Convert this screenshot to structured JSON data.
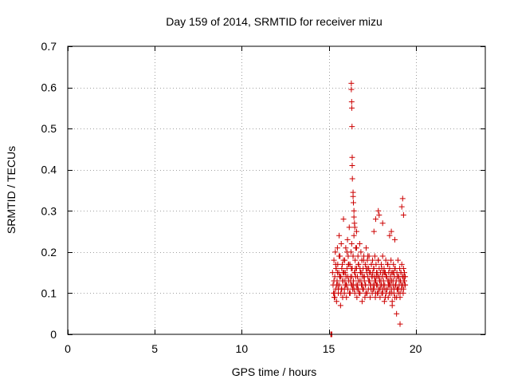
{
  "chart_data": {
    "type": "scatter",
    "title": "Day 159 of 2014, SRMTID for receiver mizu",
    "xlabel": "GPS time / hours",
    "ylabel": "SRMTID / TECUs",
    "xlim": [
      0,
      24
    ],
    "ylim": [
      0,
      0.7
    ],
    "xticks": [
      0,
      5,
      10,
      15,
      20
    ],
    "yticks": [
      0,
      0.1,
      0.2,
      0.3,
      0.4,
      0.5,
      0.6,
      0.7
    ],
    "xtick_labels": [
      "0",
      "5",
      "10",
      "15",
      "20"
    ],
    "ytick_labels": [
      "0",
      "0.1",
      "0.2",
      "0.3",
      "0.4",
      "0.5",
      "0.6",
      "0.7"
    ],
    "grid": true,
    "marker": "+",
    "color": "#cc0000",
    "series": [
      {
        "name": "SRMTID",
        "x": [
          15.22,
          15.25,
          15.28,
          15.3,
          15.32,
          15.35,
          15.38,
          15.4,
          15.42,
          15.45,
          15.48,
          15.5,
          15.52,
          15.55,
          15.58,
          15.6,
          15.62,
          15.65,
          15.68,
          15.7,
          15.72,
          15.75,
          15.78,
          15.8,
          15.82,
          15.85,
          15.88,
          15.9,
          15.92,
          15.95,
          15.98,
          16.0,
          16.02,
          16.05,
          16.08,
          16.1,
          16.12,
          16.15,
          16.18,
          16.2,
          16.22,
          16.25,
          16.28,
          16.3,
          16.32,
          16.35,
          16.38,
          16.4,
          16.42,
          16.45,
          16.48,
          16.5,
          16.52,
          16.55,
          16.58,
          16.6,
          16.62,
          16.65,
          16.68,
          16.7,
          16.72,
          16.75,
          16.78,
          16.8,
          16.82,
          16.85,
          16.88,
          16.9,
          16.92,
          16.95,
          16.98,
          17.0,
          17.02,
          17.05,
          17.08,
          17.1,
          17.12,
          17.15,
          17.18,
          17.2,
          17.22,
          17.25,
          17.28,
          17.3,
          17.32,
          17.35,
          17.38,
          17.4,
          17.42,
          17.45,
          17.48,
          17.5,
          17.52,
          17.55,
          17.58,
          17.6,
          17.62,
          17.65,
          17.68,
          17.7,
          17.72,
          17.75,
          17.78,
          17.8,
          17.82,
          17.85,
          17.88,
          17.9,
          17.92,
          17.95,
          17.98,
          18.0,
          18.02,
          18.05,
          18.08,
          18.1,
          18.12,
          18.15,
          18.18,
          18.2,
          18.22,
          18.25,
          18.28,
          18.3,
          18.32,
          18.35,
          18.38,
          18.4,
          18.42,
          18.45,
          18.48,
          18.5,
          18.52,
          18.55,
          18.58,
          18.6,
          18.62,
          18.65,
          18.68,
          18.7,
          18.72,
          18.75,
          18.78,
          18.8,
          18.82,
          18.85,
          18.88,
          18.9,
          18.92,
          18.95,
          18.98,
          19.0,
          19.02,
          19.05,
          19.08,
          19.1,
          19.12,
          19.15,
          19.18,
          19.2,
          19.22,
          19.25,
          19.28,
          19.3,
          19.32,
          19.35,
          19.38,
          19.4,
          15.3,
          15.35,
          15.4,
          15.45,
          15.5,
          15.55,
          15.6,
          15.65,
          15.7,
          15.75,
          15.8,
          15.85,
          15.9,
          15.95,
          16.0,
          16.05,
          16.1,
          16.15,
          16.2,
          16.25,
          16.3,
          16.35,
          16.4,
          16.45,
          16.5,
          16.55,
          16.6,
          16.65,
          16.7,
          16.75,
          16.8,
          16.85,
          16.9,
          16.95,
          17.0,
          17.05,
          17.1,
          17.15,
          17.2,
          17.25,
          17.3,
          17.35,
          17.4,
          17.45,
          17.5,
          17.55,
          17.6,
          17.65,
          17.7,
          17.75,
          17.8,
          17.85,
          17.9,
          17.95,
          18.0,
          18.05,
          18.1,
          18.15,
          18.2,
          18.25,
          18.3,
          18.35,
          18.4,
          18.45,
          18.5,
          18.55,
          18.6,
          18.65,
          18.7,
          18.75,
          18.8,
          18.85,
          18.9,
          18.95,
          19.0,
          19.05,
          19.1,
          19.15,
          19.2,
          19.25,
          19.3,
          19.35,
          19.4,
          15.33,
          15.43,
          15.53,
          15.63,
          15.73,
          15.83,
          15.93,
          16.03,
          16.13,
          16.23,
          16.33,
          16.43,
          16.53,
          16.63,
          16.73,
          16.83,
          16.93,
          17.03,
          17.13,
          17.23,
          17.33,
          17.43,
          17.53,
          17.63,
          17.73,
          17.83,
          17.93,
          18.03,
          18.13,
          18.23,
          18.33,
          18.43,
          18.53,
          18.63,
          18.73,
          18.83,
          18.93,
          19.03,
          19.13,
          19.23,
          19.33,
          16.3,
          16.3,
          16.32,
          16.33,
          16.34,
          16.35,
          16.35,
          16.36,
          16.4,
          16.4,
          16.42,
          16.45,
          16.45,
          16.48,
          16.5,
          16.6,
          17.6,
          17.7,
          17.85,
          17.9,
          18.1,
          18.5,
          18.6,
          18.8,
          19.2,
          19.25,
          19.3,
          19.1,
          15.12,
          15.15,
          15.18
        ],
        "y": [
          0.15,
          0.12,
          0.1,
          0.18,
          0.09,
          0.14,
          0.2,
          0.11,
          0.16,
          0.08,
          0.13,
          0.21,
          0.17,
          0.1,
          0.15,
          0.24,
          0.12,
          0.19,
          0.07,
          0.14,
          0.22,
          0.11,
          0.17,
          0.09,
          0.13,
          0.28,
          0.15,
          0.1,
          0.18,
          0.12,
          0.21,
          0.14,
          0.09,
          0.16,
          0.23,
          0.11,
          0.19,
          0.13,
          0.26,
          0.1,
          0.17,
          0.14,
          0.2,
          0.12,
          0.22,
          0.16,
          0.11,
          0.19,
          0.13,
          0.24,
          0.15,
          0.1,
          0.18,
          0.21,
          0.12,
          0.16,
          0.09,
          0.14,
          0.19,
          0.11,
          0.17,
          0.13,
          0.22,
          0.1,
          0.15,
          0.2,
          0.12,
          0.18,
          0.08,
          0.14,
          0.16,
          0.11,
          0.19,
          0.13,
          0.09,
          0.17,
          0.12,
          0.21,
          0.15,
          0.1,
          0.18,
          0.14,
          0.11,
          0.16,
          0.19,
          0.13,
          0.09,
          0.15,
          0.12,
          0.17,
          0.14,
          0.1,
          0.18,
          0.12,
          0.16,
          0.11,
          0.14,
          0.19,
          0.09,
          0.13,
          0.17,
          0.12,
          0.15,
          0.1,
          0.14,
          0.18,
          0.11,
          0.16,
          0.13,
          0.09,
          0.15,
          0.12,
          0.17,
          0.1,
          0.14,
          0.19,
          0.11,
          0.13,
          0.16,
          0.08,
          0.12,
          0.15,
          0.18,
          0.1,
          0.14,
          0.11,
          0.17,
          0.13,
          0.09,
          0.15,
          0.12,
          0.16,
          0.1,
          0.14,
          0.18,
          0.11,
          0.13,
          0.07,
          0.15,
          0.12,
          0.17,
          0.1,
          0.14,
          0.09,
          0.16,
          0.12,
          0.13,
          0.05,
          0.15,
          0.11,
          0.18,
          0.1,
          0.14,
          0.12,
          0.16,
          0.09,
          0.13,
          0.15,
          0.11,
          0.17,
          0.12,
          0.14,
          0.1,
          0.16,
          0.13,
          0.15,
          0.12,
          0.14,
          0.13,
          0.09,
          0.17,
          0.12,
          0.15,
          0.11,
          0.19,
          0.14,
          0.1,
          0.16,
          0.13,
          0.18,
          0.11,
          0.15,
          0.12,
          0.2,
          0.14,
          0.17,
          0.1,
          0.13,
          0.16,
          0.12,
          0.19,
          0.11,
          0.15,
          0.14,
          0.21,
          0.12,
          0.17,
          0.1,
          0.16,
          0.13,
          0.15,
          0.11,
          0.18,
          0.14,
          0.12,
          0.16,
          0.1,
          0.19,
          0.13,
          0.15,
          0.12,
          0.17,
          0.14,
          0.11,
          0.16,
          0.13,
          0.1,
          0.15,
          0.12,
          0.18,
          0.14,
          0.11,
          0.13,
          0.16,
          0.1,
          0.12,
          0.15,
          0.09,
          0.14,
          0.11,
          0.17,
          0.13,
          0.1,
          0.12,
          0.15,
          0.08,
          0.13,
          0.11,
          0.16,
          0.12,
          0.09,
          0.14,
          0.11,
          0.13,
          0.1,
          0.15,
          0.12,
          0.14,
          0.11,
          0.13,
          0.12,
          0.1,
          0.16,
          0.12,
          0.14,
          0.11,
          0.15,
          0.13,
          0.12,
          0.17,
          0.1,
          0.14,
          0.12,
          0.16,
          0.11,
          0.13,
          0.15,
          0.12,
          0.14,
          0.1,
          0.16,
          0.13,
          0.11,
          0.15,
          0.12,
          0.14,
          0.1,
          0.13,
          0.12,
          0.15,
          0.11,
          0.14,
          0.12,
          0.13,
          0.1,
          0.15,
          0.12,
          0.11,
          0.14,
          0.13,
          0.12,
          0.14,
          0.61,
          0.595,
          0.565,
          0.55,
          0.505,
          0.43,
          0.41,
          0.378,
          0.345,
          0.335,
          0.32,
          0.3,
          0.285,
          0.27,
          0.26,
          0.25,
          0.25,
          0.28,
          0.3,
          0.29,
          0.27,
          0.24,
          0.25,
          0.23,
          0.31,
          0.33,
          0.29,
          0.025,
          0.0,
          0.0,
          0.0
        ]
      }
    ]
  }
}
